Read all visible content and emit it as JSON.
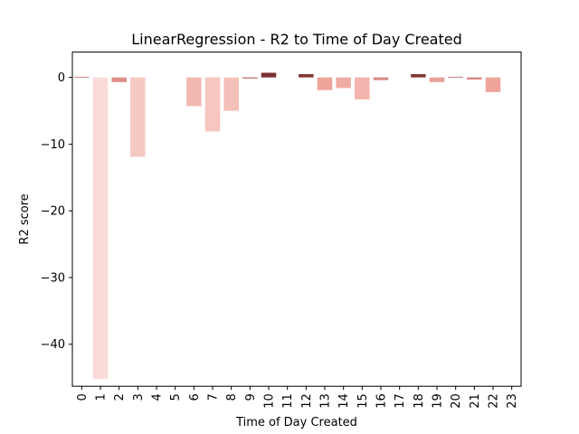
{
  "chart_data": {
    "type": "bar",
    "title": "LinearRegression - R2 to Time of Day Created",
    "xlabel": "Time of Day Created",
    "ylabel": "R2 score",
    "categories": [
      "0",
      "1",
      "2",
      "3",
      "4",
      "5",
      "6",
      "7",
      "8",
      "9",
      "10",
      "11",
      "12",
      "13",
      "14",
      "15",
      "16",
      "17",
      "18",
      "19",
      "20",
      "21",
      "22",
      "23"
    ],
    "values": [
      0.1,
      -45.2,
      -0.7,
      -11.9,
      0,
      0,
      -4.3,
      -8.1,
      -5.0,
      -0.15,
      0.7,
      0,
      0.5,
      -1.9,
      -1.6,
      -3.3,
      -0.4,
      0,
      0.5,
      -0.7,
      0.1,
      -0.3,
      -2.2,
      0
    ],
    "colors": [
      "#b45a54",
      "#fadbd8",
      "#de8f88",
      "#f6c9c3",
      "#ffffff",
      "#ffffff",
      "#f3b9b1",
      "#f6c6c0",
      "#f5c0b9",
      "#b05650",
      "#7a3230",
      "#ffffff",
      "#843834",
      "#eea49b",
      "#f0aba3",
      "#f3b5ae",
      "#d6877f",
      "#ffffff",
      "#853a35",
      "#e8a098",
      "#a6504b",
      "#d77f78",
      "#eea49b",
      "#ffffff"
    ],
    "yticks": [
      0,
      -10,
      -20,
      -30,
      -40
    ],
    "ylim": [
      -46.3,
      3.8
    ],
    "grid": false,
    "legend": "none"
  }
}
